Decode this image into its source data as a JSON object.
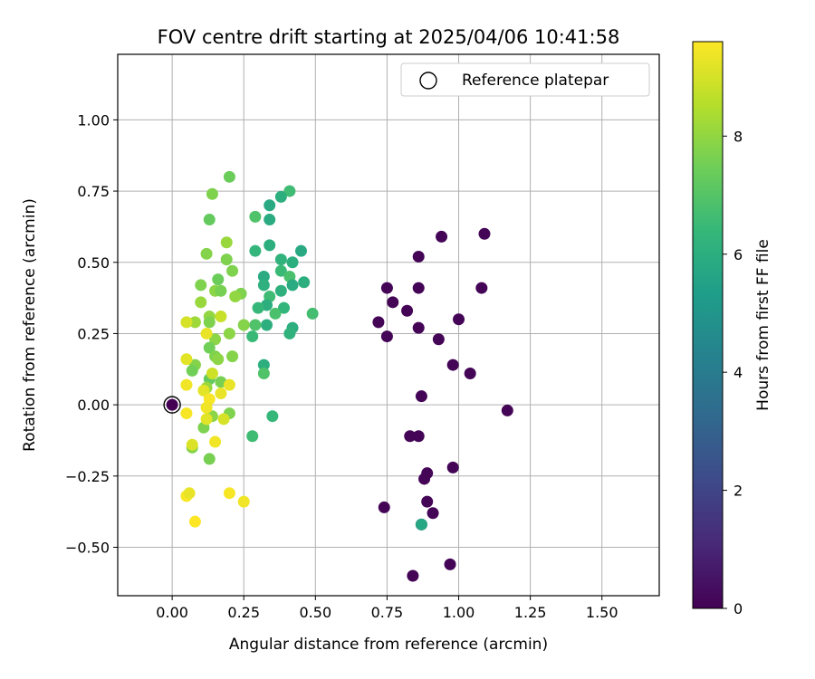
{
  "chart_data": {
    "type": "scatter",
    "title": "FOV centre drift starting at 2025/04/06 10:41:58",
    "xlabel": "Angular distance from reference (arcmin)",
    "ylabel": "Rotation from reference (arcmin)",
    "xlim": [
      -0.19,
      1.7
    ],
    "ylim": [
      -0.67,
      1.23
    ],
    "xticks": [
      "0.00",
      "0.25",
      "0.50",
      "0.75",
      "1.00",
      "1.25",
      "1.50"
    ],
    "xtick_values": [
      0,
      0.25,
      0.5,
      0.75,
      1.0,
      1.25,
      1.5
    ],
    "yticks": [
      "−0.50",
      "−0.25",
      "0.00",
      "0.25",
      "0.50",
      "0.75",
      "1.00"
    ],
    "ytick_values": [
      -0.5,
      -0.25,
      0,
      0.25,
      0.5,
      0.75,
      1.0
    ],
    "grid": true,
    "legend_position": "top-right",
    "legend": [
      {
        "label": "Reference platepar",
        "marker": "open-circle"
      }
    ],
    "reference_point": {
      "x": 0,
      "y": 0
    },
    "colorbar": {
      "label": "Hours from first FF file",
      "range": [
        0,
        9.6
      ],
      "ticks": [
        "0",
        "2",
        "4",
        "6",
        "8"
      ],
      "tick_values": [
        0,
        2,
        4,
        6,
        8
      ],
      "colormap": "viridis",
      "stops": [
        "#440154",
        "#482878",
        "#3e4989",
        "#31688e",
        "#26828e",
        "#1f9e89",
        "#35b779",
        "#6ece58",
        "#b5de2b",
        "#fde725"
      ]
    },
    "points": [
      {
        "x": 0.0,
        "y": 0.0,
        "h": 0.0
      },
      {
        "x": 0.72,
        "y": 0.29,
        "h": 0.1
      },
      {
        "x": 0.75,
        "y": 0.41,
        "h": 0.1
      },
      {
        "x": 0.75,
        "y": 0.24,
        "h": 0.1
      },
      {
        "x": 0.77,
        "y": 0.36,
        "h": 0.1
      },
      {
        "x": 0.82,
        "y": 0.33,
        "h": 0.1
      },
      {
        "x": 0.86,
        "y": 0.52,
        "h": 0.1
      },
      {
        "x": 0.86,
        "y": 0.41,
        "h": 0.1
      },
      {
        "x": 0.86,
        "y": 0.27,
        "h": 0.1
      },
      {
        "x": 0.94,
        "y": 0.59,
        "h": 0.1
      },
      {
        "x": 1.09,
        "y": 0.6,
        "h": 0.1
      },
      {
        "x": 1.08,
        "y": 0.41,
        "h": 0.1
      },
      {
        "x": 1.0,
        "y": 0.3,
        "h": 0.1
      },
      {
        "x": 0.93,
        "y": 0.23,
        "h": 0.1
      },
      {
        "x": 0.98,
        "y": 0.14,
        "h": 0.1
      },
      {
        "x": 1.04,
        "y": 0.11,
        "h": 0.1
      },
      {
        "x": 0.87,
        "y": 0.03,
        "h": 0.1
      },
      {
        "x": 1.17,
        "y": -0.02,
        "h": 0.1
      },
      {
        "x": 0.83,
        "y": -0.11,
        "h": 0.1
      },
      {
        "x": 0.86,
        "y": -0.11,
        "h": 0.1
      },
      {
        "x": 0.98,
        "y": -0.22,
        "h": 0.1
      },
      {
        "x": 0.89,
        "y": -0.24,
        "h": 0.1
      },
      {
        "x": 0.88,
        "y": -0.26,
        "h": 0.1
      },
      {
        "x": 0.89,
        "y": -0.34,
        "h": 0.1
      },
      {
        "x": 0.91,
        "y": -0.38,
        "h": 0.1
      },
      {
        "x": 0.74,
        "y": -0.36,
        "h": 0.1
      },
      {
        "x": 0.87,
        "y": -0.42,
        "h": 0.1
      },
      {
        "x": 0.97,
        "y": -0.56,
        "h": 0.1
      },
      {
        "x": 0.84,
        "y": -0.6,
        "h": 0.1
      },
      {
        "x": 0.87,
        "y": -0.42,
        "h": 5.7
      },
      {
        "x": 0.41,
        "y": 0.75,
        "h": 6.6
      },
      {
        "x": 0.38,
        "y": 0.73,
        "h": 6.0
      },
      {
        "x": 0.34,
        "y": 0.7,
        "h": 5.8
      },
      {
        "x": 0.34,
        "y": 0.65,
        "h": 5.9
      },
      {
        "x": 0.29,
        "y": 0.66,
        "h": 6.9
      },
      {
        "x": 0.34,
        "y": 0.56,
        "h": 6.0
      },
      {
        "x": 0.29,
        "y": 0.54,
        "h": 6.3
      },
      {
        "x": 0.45,
        "y": 0.54,
        "h": 5.8
      },
      {
        "x": 0.38,
        "y": 0.51,
        "h": 6.2
      },
      {
        "x": 0.42,
        "y": 0.5,
        "h": 6.0
      },
      {
        "x": 0.38,
        "y": 0.47,
        "h": 6.5
      },
      {
        "x": 0.41,
        "y": 0.45,
        "h": 6.8
      },
      {
        "x": 0.32,
        "y": 0.45,
        "h": 5.9
      },
      {
        "x": 0.32,
        "y": 0.42,
        "h": 6.1
      },
      {
        "x": 0.42,
        "y": 0.42,
        "h": 5.9
      },
      {
        "x": 0.46,
        "y": 0.43,
        "h": 6.0
      },
      {
        "x": 0.38,
        "y": 0.4,
        "h": 6.1
      },
      {
        "x": 0.34,
        "y": 0.38,
        "h": 6.6
      },
      {
        "x": 0.33,
        "y": 0.35,
        "h": 6.0
      },
      {
        "x": 0.3,
        "y": 0.34,
        "h": 6.4
      },
      {
        "x": 0.39,
        "y": 0.34,
        "h": 6.3
      },
      {
        "x": 0.36,
        "y": 0.32,
        "h": 6.8
      },
      {
        "x": 0.49,
        "y": 0.32,
        "h": 6.7
      },
      {
        "x": 0.33,
        "y": 0.28,
        "h": 6.0
      },
      {
        "x": 0.29,
        "y": 0.28,
        "h": 6.9
      },
      {
        "x": 0.42,
        "y": 0.27,
        "h": 6.0
      },
      {
        "x": 0.41,
        "y": 0.25,
        "h": 6.2
      },
      {
        "x": 0.28,
        "y": 0.24,
        "h": 6.5
      },
      {
        "x": 0.32,
        "y": 0.14,
        "h": 6.0
      },
      {
        "x": 0.32,
        "y": 0.11,
        "h": 6.9
      },
      {
        "x": 0.35,
        "y": -0.04,
        "h": 6.4
      },
      {
        "x": 0.28,
        "y": -0.11,
        "h": 6.6
      },
      {
        "x": 0.2,
        "y": 0.8,
        "h": 7.4
      },
      {
        "x": 0.14,
        "y": 0.74,
        "h": 7.7
      },
      {
        "x": 0.13,
        "y": 0.65,
        "h": 7.3
      },
      {
        "x": 0.19,
        "y": 0.57,
        "h": 8.1
      },
      {
        "x": 0.12,
        "y": 0.53,
        "h": 7.8
      },
      {
        "x": 0.19,
        "y": 0.51,
        "h": 7.7
      },
      {
        "x": 0.21,
        "y": 0.47,
        "h": 7.7
      },
      {
        "x": 0.16,
        "y": 0.44,
        "h": 7.4
      },
      {
        "x": 0.1,
        "y": 0.42,
        "h": 7.7
      },
      {
        "x": 0.15,
        "y": 0.4,
        "h": 7.9
      },
      {
        "x": 0.17,
        "y": 0.4,
        "h": 7.6
      },
      {
        "x": 0.24,
        "y": 0.39,
        "h": 7.7
      },
      {
        "x": 0.22,
        "y": 0.38,
        "h": 8.0
      },
      {
        "x": 0.1,
        "y": 0.36,
        "h": 8.1
      },
      {
        "x": 0.13,
        "y": 0.31,
        "h": 8.0
      },
      {
        "x": 0.08,
        "y": 0.29,
        "h": 8.2
      },
      {
        "x": 0.13,
        "y": 0.29,
        "h": 7.7
      },
      {
        "x": 0.25,
        "y": 0.28,
        "h": 7.8
      },
      {
        "x": 0.2,
        "y": 0.25,
        "h": 7.9
      },
      {
        "x": 0.15,
        "y": 0.23,
        "h": 7.9
      },
      {
        "x": 0.13,
        "y": 0.2,
        "h": 7.5
      },
      {
        "x": 0.15,
        "y": 0.17,
        "h": 7.7
      },
      {
        "x": 0.16,
        "y": 0.16,
        "h": 7.9
      },
      {
        "x": 0.08,
        "y": 0.14,
        "h": 7.8
      },
      {
        "x": 0.07,
        "y": 0.12,
        "h": 7.5
      },
      {
        "x": 0.13,
        "y": 0.09,
        "h": 7.3
      },
      {
        "x": 0.17,
        "y": 0.08,
        "h": 7.6
      },
      {
        "x": 0.12,
        "y": 0.06,
        "h": 8.1
      },
      {
        "x": 0.2,
        "y": -0.03,
        "h": 7.7
      },
      {
        "x": 0.14,
        "y": -0.04,
        "h": 7.9
      },
      {
        "x": 0.11,
        "y": -0.08,
        "h": 7.7
      },
      {
        "x": 0.07,
        "y": -0.15,
        "h": 7.8
      },
      {
        "x": 0.13,
        "y": -0.19,
        "h": 7.6
      },
      {
        "x": 0.21,
        "y": 0.17,
        "h": 7.8
      },
      {
        "x": 0.05,
        "y": 0.29,
        "h": 9.0
      },
      {
        "x": 0.17,
        "y": 0.31,
        "h": 8.8
      },
      {
        "x": 0.12,
        "y": 0.25,
        "h": 9.3
      },
      {
        "x": 0.05,
        "y": 0.16,
        "h": 9.2
      },
      {
        "x": 0.14,
        "y": 0.11,
        "h": 8.9
      },
      {
        "x": 0.05,
        "y": 0.07,
        "h": 9.4
      },
      {
        "x": 0.11,
        "y": 0.05,
        "h": 9.2
      },
      {
        "x": 0.2,
        "y": 0.07,
        "h": 9.3
      },
      {
        "x": 0.17,
        "y": 0.04,
        "h": 9.3
      },
      {
        "x": 0.13,
        "y": 0.02,
        "h": 9.5
      },
      {
        "x": 0.12,
        "y": -0.01,
        "h": 9.4
      },
      {
        "x": 0.05,
        "y": -0.03,
        "h": 9.5
      },
      {
        "x": 0.18,
        "y": -0.05,
        "h": 9.0
      },
      {
        "x": 0.12,
        "y": -0.05,
        "h": 9.2
      },
      {
        "x": 0.15,
        "y": -0.13,
        "h": 9.4
      },
      {
        "x": 0.07,
        "y": -0.14,
        "h": 9.1
      },
      {
        "x": 0.05,
        "y": -0.32,
        "h": 9.5
      },
      {
        "x": 0.06,
        "y": -0.31,
        "h": 9.3
      },
      {
        "x": 0.2,
        "y": -0.31,
        "h": 9.5
      },
      {
        "x": 0.25,
        "y": -0.34,
        "h": 9.4
      },
      {
        "x": 0.08,
        "y": -0.41,
        "h": 9.6
      }
    ]
  }
}
